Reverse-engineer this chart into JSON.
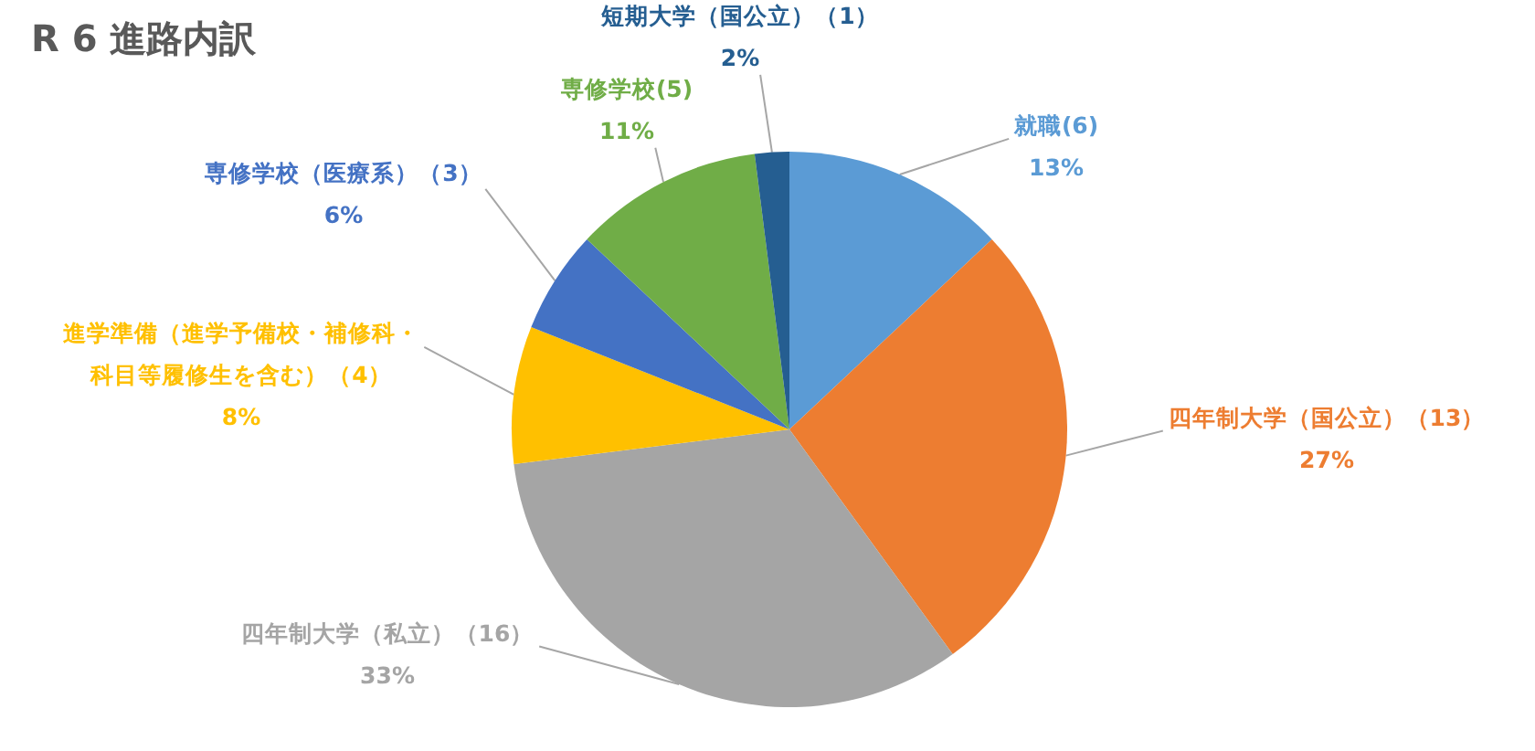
{
  "chart_data": {
    "type": "pie",
    "title": "R 6 進路内訳",
    "categories": [
      "就職(6)",
      "四年制大学（国公立）（13）",
      "四年制大学（私立）（16）",
      "進学準備（進学予備校・補修科・科目等履修生を含む）（4）",
      "専修学校（医療系）（3）",
      "専修学校(5)",
      "短期大学（国公立）（1）"
    ],
    "values": [
      13,
      27,
      33,
      8,
      6,
      11,
      2
    ],
    "colors": [
      "#5b9bd5",
      "#ed7d31",
      "#a5a5a5",
      "#ffc000",
      "#4472c4",
      "#70ad47",
      "#255e91"
    ],
    "value_labels": [
      "13%",
      "27%",
      "33%",
      "8%",
      "6%",
      "11%",
      "2%"
    ]
  }
}
